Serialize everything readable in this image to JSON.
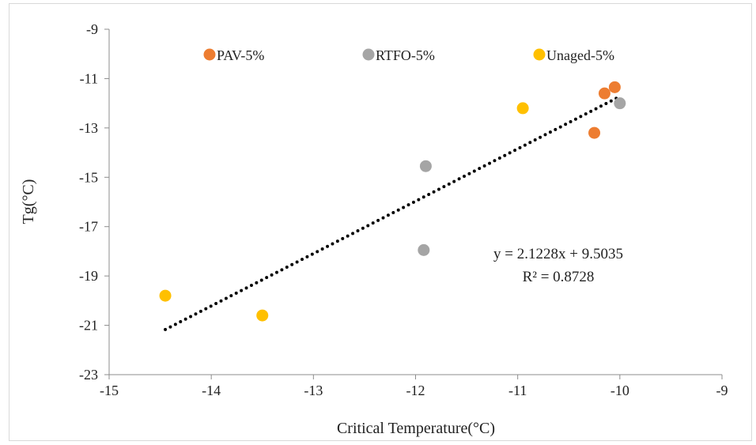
{
  "chart_data": {
    "type": "scatter",
    "title": "",
    "xlabel": "Critical Temperature(°C)",
    "ylabel": "Tg(°C)",
    "xlim": [
      -15,
      -9
    ],
    "ylim": [
      -23,
      -9
    ],
    "xticks": [
      -15,
      -14,
      -13,
      -12,
      -11,
      -10,
      -9
    ],
    "yticks": [
      -9,
      -11,
      -13,
      -15,
      -17,
      -19,
      -21,
      -23
    ],
    "grid": false,
    "legend_position": "top",
    "series": [
      {
        "name": "PAV-5%",
        "color": "#ED7D31",
        "points": [
          {
            "x": -10.05,
            "y": -11.35
          },
          {
            "x": -10.15,
            "y": -11.6
          },
          {
            "x": -10.25,
            "y": -13.2
          }
        ]
      },
      {
        "name": "RTFO-5%",
        "color": "#A5A5A5",
        "points": [
          {
            "x": -10.0,
            "y": -12.0
          },
          {
            "x": -11.9,
            "y": -14.55
          },
          {
            "x": -11.92,
            "y": -17.95
          }
        ]
      },
      {
        "name": "Unaged-5%",
        "color": "#FFC000",
        "points": [
          {
            "x": -10.95,
            "y": -12.2
          },
          {
            "x": -14.45,
            "y": -19.8
          },
          {
            "x": -13.5,
            "y": -20.6
          }
        ]
      }
    ],
    "trendline": {
      "type": "linear",
      "style": "dotted",
      "color": "#000000",
      "slope": 2.1228,
      "intercept": 9.5035,
      "x_range": [
        -14.45,
        -10.0
      ],
      "equation_label": "y = 2.1228x + 9.5035",
      "r2_label": "R² = 0.8728"
    }
  }
}
